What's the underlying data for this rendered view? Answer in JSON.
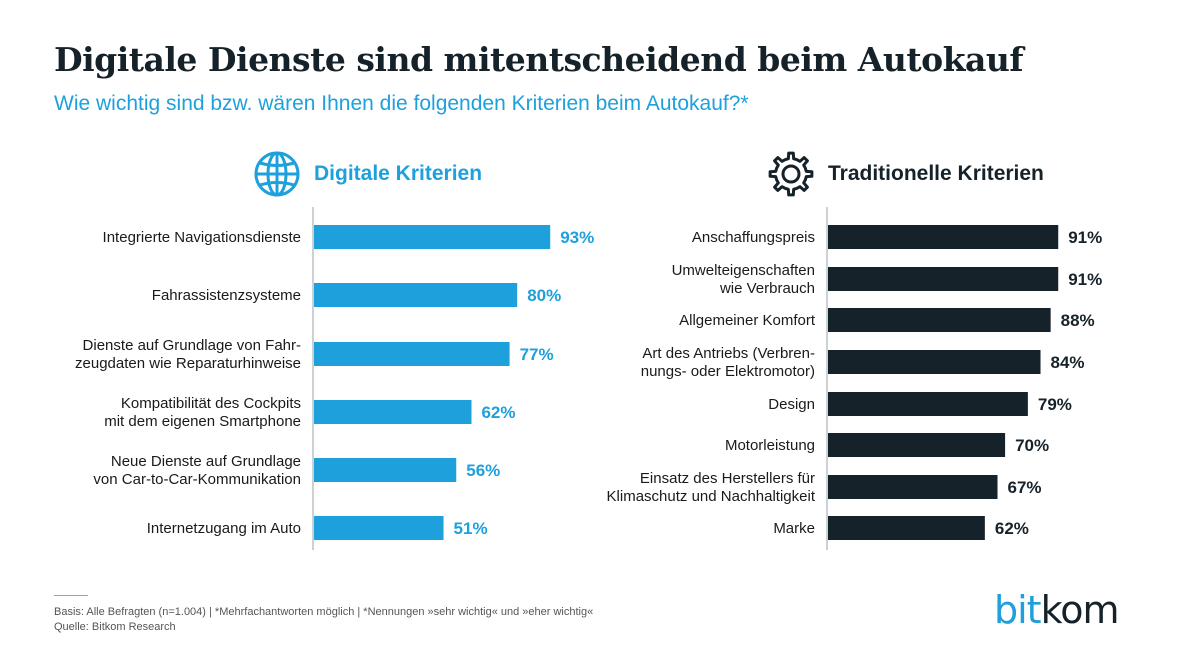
{
  "title": "Digitale Dienste sind mitentscheidend beim Autokauf",
  "subtitle": "Wie wichtig sind bzw. wären Ihnen die folgenden Kriterien beim Autokauf?*",
  "colors": {
    "digital": "#1ea0dc",
    "traditional": "#16222a"
  },
  "chart_data": [
    {
      "type": "bar",
      "orientation": "horizontal",
      "title": "Digitale Kriterien",
      "icon": "globe-icon",
      "unit": "%",
      "categories": [
        "Integrierte Navigationsdienste",
        "Fahrassistenzsysteme",
        "Dienste auf Grundlage von Fahrzeugdaten wie Reparaturhinweise",
        "Kompatibilität des Cockpits mit dem eigenen Smartphone",
        "Neue Dienste auf Grundlage von Car-to-Car-Kommunikation",
        "Internetzugang im Auto"
      ],
      "category_lines": [
        [
          "Integrierte Navigationsdienste"
        ],
        [
          "Fahrassistenzsysteme"
        ],
        [
          "Dienste auf Grundlage von Fahr-",
          "zeugdaten wie Reparaturhinweise"
        ],
        [
          "Kompatibilität des Cockpits",
          "mit dem eigenen Smartphone"
        ],
        [
          "Neue Dienste auf Grundlage",
          "von Car-to-Car-Kommunikation"
        ],
        [
          "Internetzugang im Auto"
        ]
      ],
      "values": [
        93,
        80,
        77,
        62,
        56,
        51
      ],
      "value_labels": [
        "93%",
        "80%",
        "77%",
        "62%",
        "56%",
        "51%"
      ],
      "xlim": [
        0,
        100
      ]
    },
    {
      "type": "bar",
      "orientation": "horizontal",
      "title": "Traditionelle Kriterien",
      "icon": "gear-icon",
      "unit": "%",
      "categories": [
        "Anschaffungspreis",
        "Umwelteigenschaften wie Verbrauch",
        "Allgemeiner Komfort",
        "Art des Antriebs (Verbrennungs- oder Elektromotor)",
        "Design",
        "Motorleistung",
        "Einsatz des Herstellers für Klimaschutz und Nachhaltigkeit",
        "Marke"
      ],
      "category_lines": [
        [
          "Anschaffungspreis"
        ],
        [
          "Umwelteigenschaften",
          "wie Verbrauch"
        ],
        [
          "Allgemeiner Komfort"
        ],
        [
          "Art des Antriebs (Verbren-",
          "nungs- oder Elektromotor)"
        ],
        [
          "Design"
        ],
        [
          "Motorleistung"
        ],
        [
          "Einsatz des Herstellers für",
          "Klimaschutz und Nachhaltigkeit"
        ],
        [
          "Marke"
        ]
      ],
      "values": [
        91,
        91,
        88,
        84,
        79,
        70,
        67,
        62
      ],
      "value_labels": [
        "91%",
        "91%",
        "88%",
        "84%",
        "79%",
        "70%",
        "67%",
        "62%"
      ],
      "xlim": [
        0,
        100
      ]
    }
  ],
  "footer": {
    "basis": "Basis: Alle Befragten (n=1.004) | *Mehrfachantworten möglich | *Nennungen »sehr wichtig« und »eher wichtig«",
    "source": "Quelle: Bitkom Research"
  },
  "logo": {
    "part1": "bit",
    "part2": "kom"
  }
}
